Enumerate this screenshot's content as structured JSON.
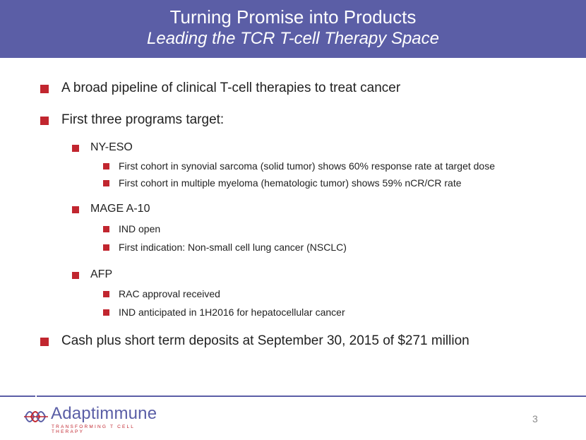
{
  "header": {
    "title": "Turning Promise into Products",
    "subtitle": "Leading the TCR T-cell Therapy Space"
  },
  "bullets": {
    "b1": "A broad pipeline of clinical T-cell therapies to treat cancer",
    "b2": "First three programs target:",
    "nyeso": {
      "label": "NY-ESO",
      "s1": "First cohort in synovial sarcoma (solid tumor) shows 60% response rate at target dose",
      "s2": "First cohort in multiple myeloma (hematologic tumor) shows 59% nCR/CR rate"
    },
    "mage": {
      "label": "MAGE A-10",
      "s1": "IND open",
      "s2": "First indication: Non-small cell lung cancer (NSCLC)"
    },
    "afp": {
      "label": "AFP",
      "s1": "RAC approval received",
      "s2": "IND anticipated in 1H2016 for hepatocellular cancer"
    },
    "b3": "Cash plus short term deposits at September 30, 2015 of $271 million"
  },
  "footer": {
    "logo_word": "Adaptimmune",
    "logo_tagline": "TRANSFORMING T CELL THERAPY",
    "page_number": "3"
  },
  "colors": {
    "header_bg": "#5b5ea6",
    "bullet": "#c1262f",
    "logo_blue": "#5a5ea6",
    "logo_red": "#c1262f"
  },
  "icons": {
    "bullet": "square-bullet-icon",
    "logo": "adaptimmune-logo-icon"
  }
}
